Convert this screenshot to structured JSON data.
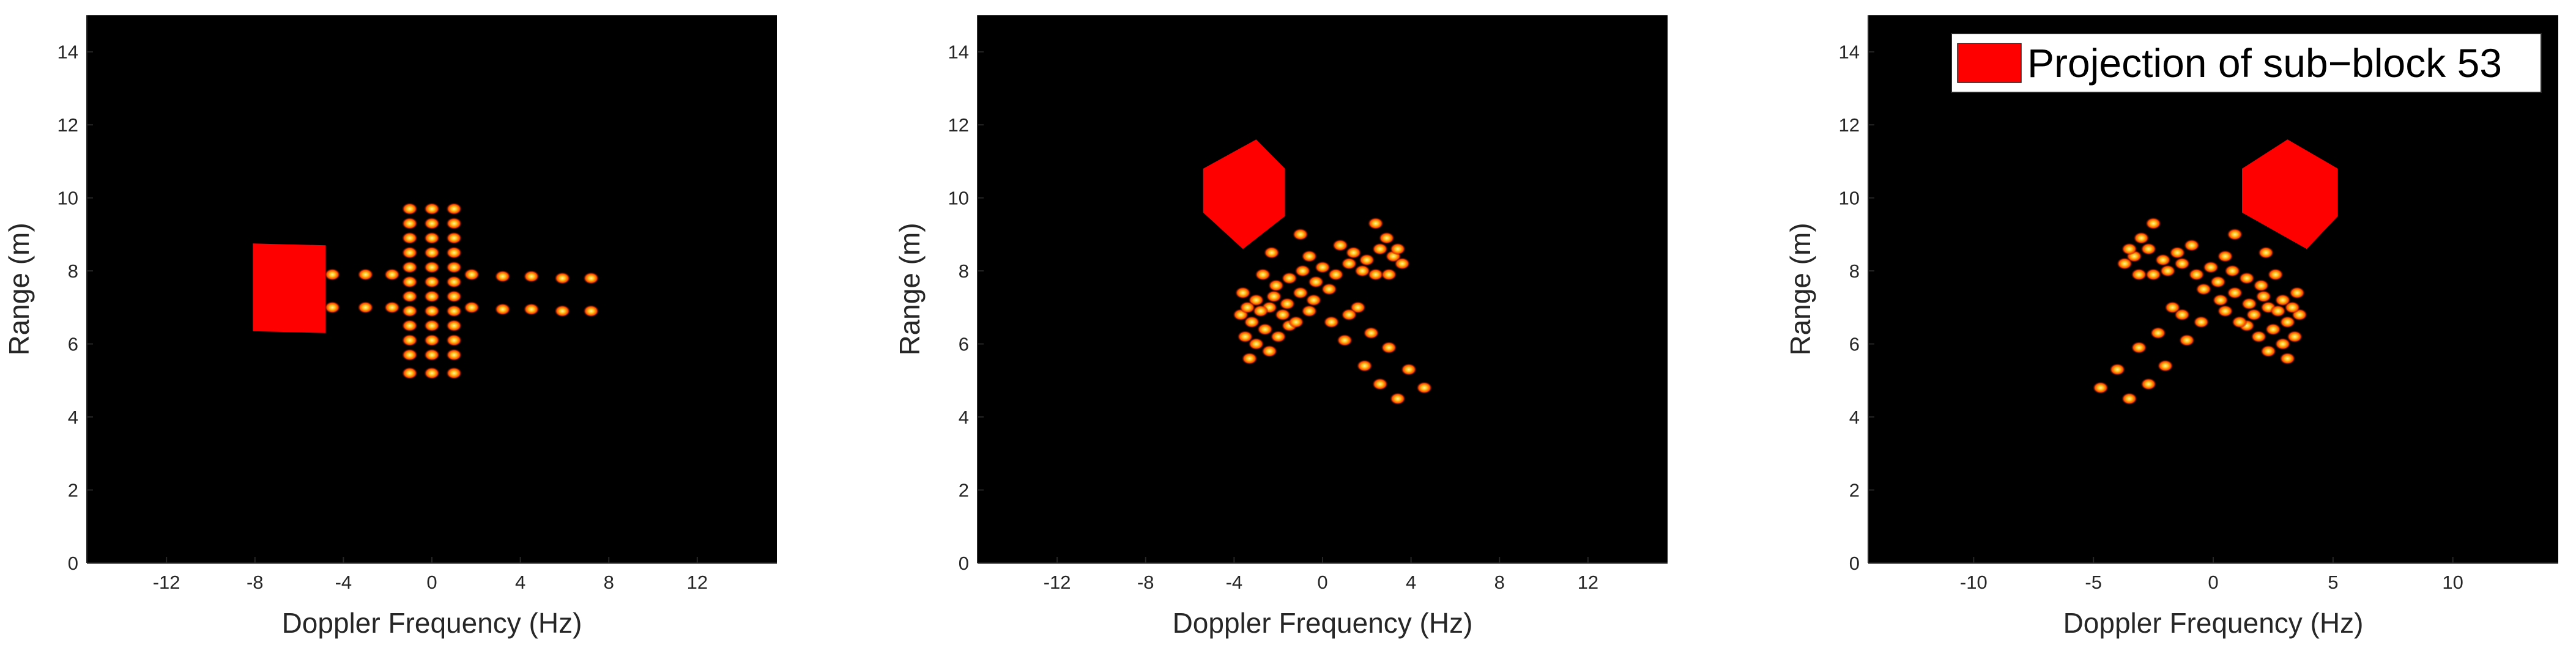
{
  "chart_data": [
    {
      "type": "scatter",
      "title": "",
      "xlabel": "Doppler Frequency (Hz)",
      "ylabel": "Range (m)",
      "xlim": [
        -15.6,
        15.6
      ],
      "ylim": [
        0,
        15
      ],
      "xticks": [
        -12,
        -8,
        -4,
        0,
        4,
        8,
        12
      ],
      "xticklabels": [
        "-12",
        "-8",
        "-4",
        "0",
        "4",
        "8",
        "12"
      ],
      "yticks": [
        0,
        2,
        4,
        6,
        8,
        10,
        12,
        14
      ],
      "yticklabels": [
        "0",
        "2",
        "4",
        "6",
        "8",
        "10",
        "12",
        "14"
      ],
      "background": "#000000",
      "point_color": "#ff4b00",
      "point_core_color": "#ffe25a",
      "projection_color": "#ff0000",
      "projection_polygon": [
        [
          -8.1,
          8.75
        ],
        [
          -4.8,
          8.7
        ],
        [
          -4.8,
          6.3
        ],
        [
          -8.1,
          6.35
        ]
      ],
      "series": [
        {
          "points": [
            [
              -1.0,
              5.2
            ],
            [
              0.0,
              5.2
            ],
            [
              1.0,
              5.2
            ],
            [
              -1.0,
              5.7
            ],
            [
              0.0,
              5.7
            ],
            [
              1.0,
              5.7
            ],
            [
              -1.0,
              6.1
            ],
            [
              0.0,
              6.1
            ],
            [
              1.0,
              6.1
            ],
            [
              -1.0,
              6.5
            ],
            [
              0.0,
              6.5
            ],
            [
              1.0,
              6.5
            ],
            [
              -1.0,
              6.9
            ],
            [
              0.0,
              6.9
            ],
            [
              1.0,
              6.9
            ],
            [
              -1.0,
              7.3
            ],
            [
              0.0,
              7.3
            ],
            [
              1.0,
              7.3
            ],
            [
              -1.0,
              7.7
            ],
            [
              0.0,
              7.7
            ],
            [
              1.0,
              7.7
            ],
            [
              -1.0,
              8.1
            ],
            [
              0.0,
              8.1
            ],
            [
              1.0,
              8.1
            ],
            [
              -1.0,
              8.5
            ],
            [
              0.0,
              8.5
            ],
            [
              1.0,
              8.5
            ],
            [
              -1.0,
              8.9
            ],
            [
              0.0,
              8.9
            ],
            [
              1.0,
              8.9
            ],
            [
              -1.0,
              9.3
            ],
            [
              0.0,
              9.3
            ],
            [
              1.0,
              9.3
            ],
            [
              -1.0,
              9.7
            ],
            [
              0.0,
              9.7
            ],
            [
              1.0,
              9.7
            ],
            [
              -4.5,
              7.0
            ],
            [
              -4.5,
              7.9
            ],
            [
              -3.0,
              7.0
            ],
            [
              -3.0,
              7.9
            ],
            [
              -1.8,
              7.0
            ],
            [
              -1.8,
              7.9
            ],
            [
              1.8,
              7.0
            ],
            [
              1.8,
              7.9
            ],
            [
              3.2,
              6.95
            ],
            [
              3.2,
              7.85
            ],
            [
              4.5,
              6.95
            ],
            [
              4.5,
              7.85
            ],
            [
              5.9,
              6.9
            ],
            [
              5.9,
              7.8
            ],
            [
              7.2,
              6.9
            ],
            [
              7.2,
              7.8
            ]
          ]
        }
      ]
    },
    {
      "type": "scatter",
      "title": "",
      "xlabel": "Doppler Frequency (Hz)",
      "ylabel": "Range (m)",
      "xlim": [
        -15.6,
        15.6
      ],
      "ylim": [
        0,
        15
      ],
      "xticks": [
        -12,
        -8,
        -4,
        0,
        4,
        8,
        12
      ],
      "xticklabels": [
        "-12",
        "-8",
        "-4",
        "0",
        "4",
        "8",
        "12"
      ],
      "yticks": [
        0,
        2,
        4,
        6,
        8,
        10,
        12,
        14
      ],
      "yticklabels": [
        "0",
        "2",
        "4",
        "6",
        "8",
        "10",
        "12",
        "14"
      ],
      "background": "#000000",
      "point_color": "#ff4b00",
      "point_core_color": "#ffe25a",
      "projection_color": "#ff0000",
      "projection_polygon": [
        [
          -5.4,
          10.8
        ],
        [
          -3.0,
          11.6
        ],
        [
          -1.7,
          10.8
        ],
        [
          -1.7,
          9.5
        ],
        [
          -3.6,
          8.6
        ],
        [
          -5.4,
          9.6
        ]
      ],
      "series": [
        {
          "points": [
            [
              -3.7,
              6.8
            ],
            [
              -3.2,
              6.6
            ],
            [
              -2.6,
              6.4
            ],
            [
              -2.0,
              6.2
            ],
            [
              -1.5,
              6.5
            ],
            [
              -3.5,
              6.2
            ],
            [
              -3.0,
              6.0
            ],
            [
              -2.4,
              5.8
            ],
            [
              -3.3,
              5.6
            ],
            [
              -3.6,
              7.4
            ],
            [
              -3.0,
              7.2
            ],
            [
              -2.4,
              7.0
            ],
            [
              -1.8,
              6.8
            ],
            [
              -1.2,
              6.6
            ],
            [
              -0.6,
              6.9
            ],
            [
              -3.4,
              7.0
            ],
            [
              -2.8,
              6.9
            ],
            [
              -2.2,
              7.3
            ],
            [
              -1.6,
              7.1
            ],
            [
              -1.0,
              7.4
            ],
            [
              -0.4,
              7.2
            ],
            [
              -2.7,
              7.9
            ],
            [
              -2.1,
              7.6
            ],
            [
              -1.5,
              7.8
            ],
            [
              -0.9,
              8.0
            ],
            [
              -0.3,
              7.7
            ],
            [
              0.3,
              7.5
            ],
            [
              -0.6,
              8.4
            ],
            [
              0.0,
              8.1
            ],
            [
              0.6,
              7.9
            ],
            [
              1.2,
              8.2
            ],
            [
              1.8,
              8.0
            ],
            [
              2.4,
              7.9
            ],
            [
              -2.3,
              8.5
            ],
            [
              -1.0,
              9.0
            ],
            [
              0.8,
              8.7
            ],
            [
              1.4,
              8.5
            ],
            [
              2.0,
              8.3
            ],
            [
              2.6,
              8.6
            ],
            [
              3.2,
              8.4
            ],
            [
              2.4,
              9.3
            ],
            [
              2.9,
              8.9
            ],
            [
              3.4,
              8.6
            ],
            [
              3.6,
              8.2
            ],
            [
              3.0,
              7.9
            ],
            [
              1.6,
              7.0
            ],
            [
              1.2,
              6.8
            ],
            [
              0.4,
              6.6
            ],
            [
              1.0,
              6.1
            ],
            [
              2.2,
              6.3
            ],
            [
              1.9,
              5.4
            ],
            [
              2.6,
              4.9
            ],
            [
              3.4,
              4.5
            ],
            [
              3.9,
              5.3
            ],
            [
              4.6,
              4.8
            ],
            [
              3.0,
              5.9
            ]
          ]
        }
      ]
    },
    {
      "type": "scatter",
      "title": "",
      "xlabel": "Doppler Frequency (Hz)",
      "ylabel": "Range (m)",
      "xlim": [
        -14.4,
        14.4
      ],
      "ylim": [
        0,
        15
      ],
      "xticks": [
        -10,
        -5,
        0,
        5,
        10
      ],
      "xticklabels": [
        "-10",
        "-5",
        "0",
        "5",
        "10"
      ],
      "yticks": [
        0,
        2,
        4,
        6,
        8,
        10,
        12,
        14
      ],
      "yticklabels": [
        "0",
        "2",
        "4",
        "6",
        "8",
        "10",
        "12",
        "14"
      ],
      "background": "#000000",
      "point_color": "#ff4b00",
      "point_core_color": "#ffe25a",
      "projection_color": "#ff0000",
      "legend": {
        "label": "Projection of sub−block 53",
        "position": "top-right"
      },
      "projection_polygon": [
        [
          1.2,
          10.8
        ],
        [
          3.1,
          11.6
        ],
        [
          5.2,
          10.8
        ],
        [
          5.2,
          9.5
        ],
        [
          3.9,
          8.6
        ],
        [
          1.2,
          9.6
        ]
      ],
      "series": [
        {
          "points": [
            [
              3.6,
              6.8
            ],
            [
              3.1,
              6.6
            ],
            [
              2.5,
              6.4
            ],
            [
              1.9,
              6.2
            ],
            [
              1.4,
              6.5
            ],
            [
              3.4,
              6.2
            ],
            [
              2.9,
              6.0
            ],
            [
              2.3,
              5.8
            ],
            [
              3.1,
              5.6
            ],
            [
              3.5,
              7.4
            ],
            [
              2.9,
              7.2
            ],
            [
              2.3,
              7.0
            ],
            [
              1.7,
              6.8
            ],
            [
              1.1,
              6.6
            ],
            [
              0.5,
              6.9
            ],
            [
              3.3,
              7.0
            ],
            [
              2.7,
              6.9
            ],
            [
              2.1,
              7.3
            ],
            [
              1.5,
              7.1
            ],
            [
              0.9,
              7.4
            ],
            [
              0.3,
              7.2
            ],
            [
              2.6,
              7.9
            ],
            [
              2.0,
              7.6
            ],
            [
              1.4,
              7.8
            ],
            [
              0.8,
              8.0
            ],
            [
              0.2,
              7.7
            ],
            [
              -0.4,
              7.5
            ],
            [
              0.5,
              8.4
            ],
            [
              -0.1,
              8.1
            ],
            [
              -0.7,
              7.9
            ],
            [
              -1.3,
              8.2
            ],
            [
              -1.9,
              8.0
            ],
            [
              -2.5,
              7.9
            ],
            [
              2.2,
              8.5
            ],
            [
              0.9,
              9.0
            ],
            [
              -0.9,
              8.7
            ],
            [
              -1.5,
              8.5
            ],
            [
              -2.1,
              8.3
            ],
            [
              -2.7,
              8.6
            ],
            [
              -3.3,
              8.4
            ],
            [
              -2.5,
              9.3
            ],
            [
              -3.0,
              8.9
            ],
            [
              -3.5,
              8.6
            ],
            [
              -3.7,
              8.2
            ],
            [
              -3.1,
              7.9
            ],
            [
              -1.7,
              7.0
            ],
            [
              -1.3,
              6.8
            ],
            [
              -0.5,
              6.6
            ],
            [
              -1.1,
              6.1
            ],
            [
              -2.3,
              6.3
            ],
            [
              -2.0,
              5.4
            ],
            [
              -2.7,
              4.9
            ],
            [
              -3.5,
              4.5
            ],
            [
              -4.0,
              5.3
            ],
            [
              -4.7,
              4.8
            ],
            [
              -3.1,
              5.9
            ]
          ]
        }
      ]
    }
  ]
}
